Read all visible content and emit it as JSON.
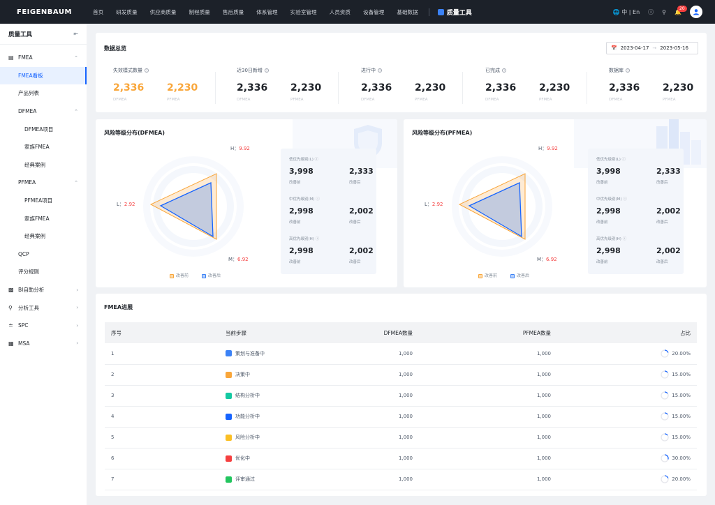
{
  "header": {
    "logo": "FEIGENBAUM",
    "nav": [
      "首页",
      "研发质量",
      "供应商质量",
      "制程质量",
      "售后质量",
      "体系管理",
      "实验室管理",
      "人员资质",
      "设备管理",
      "基础数据"
    ],
    "current_module": "质量工具",
    "lang": "中 | En",
    "notification_count": "20"
  },
  "sidebar": {
    "title": "质量工具",
    "items": [
      {
        "label": "FMEA"
      },
      {
        "label": "FMEA看板"
      },
      {
        "label": "产品列表"
      },
      {
        "label": "DFMEA"
      },
      {
        "label": "DFMEA项目"
      },
      {
        "label": "家族FMEA"
      },
      {
        "label": "经典案例"
      },
      {
        "label": "PFMEA"
      },
      {
        "label": "PFMEA项目"
      },
      {
        "label": "家族FMEA"
      },
      {
        "label": "经典案例"
      },
      {
        "label": "QCP"
      },
      {
        "label": "评分规则"
      },
      {
        "label": "BI自助分析"
      },
      {
        "label": "分析工具"
      },
      {
        "label": "SPC"
      },
      {
        "label": "MSA"
      }
    ]
  },
  "overview": {
    "title": "数据总览",
    "date_start": "2023-04-17",
    "date_end": "2023-05-16",
    "stats": [
      {
        "label": "失效模式数量",
        "d_value": "2,336",
        "p_value": "2,230",
        "d_sub": "DFMEA",
        "p_sub": "PFMEA"
      },
      {
        "label": "近30日新增",
        "d_value": "2,336",
        "p_value": "2,230",
        "d_sub": "DFMEA",
        "p_sub": "PFMEA"
      },
      {
        "label": "进行中",
        "d_value": "2,336",
        "p_value": "2,230",
        "d_sub": "DFMEA",
        "p_sub": "PFMEA"
      },
      {
        "label": "已完成",
        "d_value": "2,336",
        "p_value": "2,230",
        "d_sub": "DFMEA",
        "p_sub": "PFMEA"
      },
      {
        "label": "数据库",
        "d_value": "2,336",
        "p_value": "2,230",
        "d_sub": "DFMEA",
        "p_sub": "PFMEA"
      }
    ]
  },
  "risk": [
    {
      "title": "风险等级分布(DFMEA)",
      "axis": {
        "h_label": "H：",
        "h_value": "9.92",
        "l_label": "L：",
        "l_value": "2.92",
        "m_label": "M：",
        "m_value": "6.92"
      },
      "legend_before": "改善前",
      "legend_after": "改善后",
      "groups": [
        {
          "label": "低优先级别(L)",
          "before": "3,998",
          "after": "2,333",
          "before_sub": "改善前",
          "after_sub": "改善后"
        },
        {
          "label": "中优先级别(M)",
          "before": "2,998",
          "after": "2,002",
          "before_sub": "改善前",
          "after_sub": "改善后"
        },
        {
          "label": "高优先级别(H)",
          "before": "2,998",
          "after": "2,002",
          "before_sub": "改善前",
          "after_sub": "改善后"
        }
      ]
    },
    {
      "title": "风险等级分布(PFMEA)",
      "axis": {
        "h_label": "H：",
        "h_value": "9.92",
        "l_label": "L：",
        "l_value": "2.92",
        "m_label": "M：",
        "m_value": "6.92"
      },
      "legend_before": "改善前",
      "legend_after": "改善后",
      "groups": [
        {
          "label": "低优先级别(L)",
          "before": "3,998",
          "after": "2,333",
          "before_sub": "改善前",
          "after_sub": "改善后"
        },
        {
          "label": "中优先级别(M)",
          "before": "2,998",
          "after": "2,002",
          "before_sub": "改善前",
          "after_sub": "改善后"
        },
        {
          "label": "高优先级别(H)",
          "before": "2,998",
          "after": "2,002",
          "before_sub": "改善前",
          "after_sub": "改善后"
        }
      ]
    }
  ],
  "progress": {
    "title": "FMEA进展",
    "columns": [
      "序号",
      "当前步骤",
      "DFMEA数量",
      "PFMEA数量",
      "占比"
    ],
    "rows": [
      {
        "no": "1",
        "step": "策划与准备中",
        "d": "1,000",
        "p": "1,000",
        "pct": "20.00%",
        "frac": 0.2,
        "color": "#3b82f6"
      },
      {
        "no": "2",
        "step": "决策中",
        "d": "1,000",
        "p": "1,000",
        "pct": "15.00%",
        "frac": 0.15,
        "color": "#f9a63a"
      },
      {
        "no": "3",
        "step": "结构分析中",
        "d": "1,000",
        "p": "1,000",
        "pct": "15.00%",
        "frac": 0.15,
        "color": "#14c9a2"
      },
      {
        "no": "4",
        "step": "功能分析中",
        "d": "1,000",
        "p": "1,000",
        "pct": "15.00%",
        "frac": 0.15,
        "color": "#1664ff"
      },
      {
        "no": "5",
        "step": "风险分析中",
        "d": "1,000",
        "p": "1,000",
        "pct": "15.00%",
        "frac": 0.15,
        "color": "#fbbf24"
      },
      {
        "no": "6",
        "step": "优化中",
        "d": "1,000",
        "p": "1,000",
        "pct": "30.00%",
        "frac": 0.3,
        "color": "#f53f3f"
      },
      {
        "no": "7",
        "step": "评审通过",
        "d": "1,000",
        "p": "1,000",
        "pct": "20.00%",
        "frac": 0.2,
        "color": "#22c55e"
      }
    ]
  },
  "colors": {
    "accent": "#1664ff",
    "orange": "#f9a63a",
    "red": "#f53f3f"
  }
}
